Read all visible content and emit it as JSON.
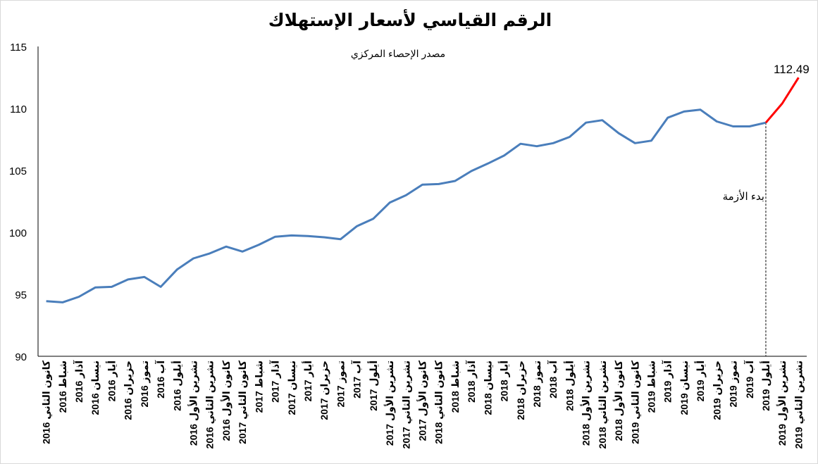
{
  "chart_data": {
    "type": "line",
    "title": "الرقم القياسي لأسعار الإستهلاك",
    "subtitle": "مصدر الإحصاء المركزي",
    "xlabel": "",
    "ylabel": "",
    "ylim": [
      90,
      115
    ],
    "yticks": [
      90,
      95,
      100,
      105,
      110,
      115
    ],
    "grid": false,
    "categories": [
      "كانون الثاني 2016",
      "شباط 2016",
      "آذار 2016",
      "نيسان 2016",
      "أيار 2016",
      "حزيران 2016",
      "تموز 2016",
      "آب 2016",
      "أيلول 2016",
      "تشرين الأول 2016",
      "تشرين الثاني 2016",
      "كانون الأول 2016",
      "كانون الثاني 2017",
      "شباط 2017",
      "آذار 2017",
      "نيسان 2017",
      "أيار 2017",
      "حزيران 2017",
      "تموز 2017",
      "آب 2017",
      "أيلول 2017",
      "تشرين الأول 2017",
      "تشرين الثاني 2017",
      "كانون الأول 2017",
      "كانون الثاني 2018",
      "شباط 2018",
      "آذار 2018",
      "نيسان 2018",
      "أيار 2018",
      "حزيران 2018",
      "تموز 2018",
      "آب 2018",
      "أيلول 2018",
      "تشرين الأول 2018",
      "تشرين الثاني 2018",
      "كانون الأول 2018",
      "كانون الثاني 2019",
      "شباط 2019",
      "آذار 2019",
      "نيسان 2019",
      "أيار 2019",
      "حزيران 2019",
      "تموز 2019",
      "آب 2019",
      "أيلول 2019",
      "تشرين الأول 2019",
      "تشرين الثاني 2019"
    ],
    "series": [
      {
        "values": [
          94.45,
          94.35,
          94.8,
          95.55,
          95.6,
          96.2,
          96.4,
          95.6,
          97.0,
          97.9,
          98.3,
          98.85,
          98.45,
          99.0,
          99.65,
          99.75,
          99.7,
          99.6,
          99.45,
          100.5,
          101.1,
          102.4,
          103.0,
          103.85,
          103.9,
          104.15,
          104.95,
          105.55,
          106.2,
          107.15,
          106.95,
          107.2,
          107.7,
          108.85,
          109.05,
          108.0,
          107.2,
          107.4,
          109.25,
          109.75,
          109.9,
          108.95,
          108.55,
          108.55,
          108.85,
          110.4,
          112.49
        ],
        "color": "#4a7ebb",
        "highlight_from_index": 44,
        "highlight_color": "#ff0000"
      }
    ],
    "annotations": {
      "crisis_label": "بدء الأزمة",
      "crisis_index": 44,
      "last_value_label": "112.49"
    }
  }
}
